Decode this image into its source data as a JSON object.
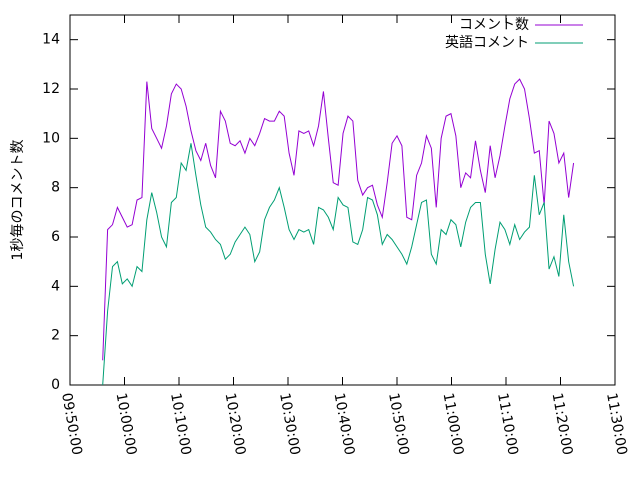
{
  "chart_data": {
    "type": "line",
    "y_label": "1秒毎のコメント数",
    "x": [
      "09:56:00",
      "09:56:54",
      "09:57:48",
      "09:58:42",
      "09:59:36",
      "10:00:30",
      "10:01:24",
      "10:02:18",
      "10:03:12",
      "10:04:06",
      "10:05:00",
      "10:05:54",
      "10:06:48",
      "10:07:42",
      "10:08:36",
      "10:09:30",
      "10:10:24",
      "10:11:18",
      "10:12:12",
      "10:13:06",
      "10:14:00",
      "10:14:54",
      "10:15:48",
      "10:16:42",
      "10:17:36",
      "10:18:30",
      "10:19:24",
      "10:20:18",
      "10:21:12",
      "10:22:06",
      "10:23:00",
      "10:23:54",
      "10:24:48",
      "10:25:42",
      "10:26:36",
      "10:27:30",
      "10:28:24",
      "10:29:18",
      "10:30:12",
      "10:31:06",
      "10:32:00",
      "10:32:54",
      "10:33:48",
      "10:34:42",
      "10:35:36",
      "10:36:30",
      "10:37:24",
      "10:38:18",
      "10:39:12",
      "10:40:06",
      "10:41:00",
      "10:41:54",
      "10:42:48",
      "10:43:42",
      "10:44:36",
      "10:45:30",
      "10:46:24",
      "10:47:18",
      "10:48:12",
      "10:49:06",
      "10:50:00",
      "10:50:54",
      "10:51:48",
      "10:52:42",
      "10:53:36",
      "10:54:30",
      "10:55:24",
      "10:56:18",
      "10:57:12",
      "10:58:06",
      "10:59:00",
      "10:59:54",
      "11:00:48",
      "11:01:42",
      "11:02:36",
      "11:03:30",
      "11:04:24",
      "11:05:18",
      "11:06:12",
      "11:07:06",
      "11:08:00",
      "11:08:54",
      "11:09:48",
      "11:10:42",
      "11:11:36",
      "11:12:30",
      "11:13:24",
      "11:14:18",
      "11:15:12",
      "11:16:06",
      "11:17:00",
      "11:17:54",
      "11:18:48",
      "11:19:42",
      "11:20:36",
      "11:21:30",
      "11:22:24"
    ],
    "series": [
      {
        "name": "コメント数",
        "color": "#9400d3",
        "values": [
          1.0,
          6.3,
          6.5,
          7.2,
          6.8,
          6.4,
          6.5,
          7.5,
          7.6,
          12.3,
          10.4,
          10.0,
          9.6,
          10.5,
          11.8,
          12.2,
          12.0,
          11.3,
          10.3,
          9.5,
          9.1,
          9.8,
          8.9,
          8.4,
          11.1,
          10.7,
          9.8,
          9.7,
          9.9,
          9.4,
          10.0,
          9.7,
          10.2,
          10.8,
          10.7,
          10.7,
          11.1,
          10.9,
          9.4,
          8.5,
          10.3,
          10.2,
          10.3,
          9.7,
          10.5,
          11.9,
          10.0,
          8.2,
          8.1,
          10.2,
          10.9,
          10.7,
          8.3,
          7.7,
          8.0,
          8.1,
          7.3,
          6.8,
          8.2,
          9.8,
          10.1,
          9.7,
          6.8,
          6.7,
          8.5,
          9.0,
          10.1,
          9.6,
          7.2,
          10.0,
          10.9,
          11.0,
          10.1,
          8.0,
          8.6,
          8.4,
          9.9,
          8.7,
          7.8,
          9.7,
          8.4,
          9.3,
          10.5,
          11.6,
          12.2,
          12.4,
          12.0,
          10.8,
          9.4,
          9.5,
          7.3,
          10.7,
          10.2,
          9.0,
          9.4,
          7.6,
          9.0
        ]
      },
      {
        "name": "英語コメント",
        "color": "#009e73",
        "values": [
          0,
          3.0,
          4.8,
          5.0,
          4.1,
          4.3,
          4.0,
          4.8,
          4.6,
          6.7,
          7.8,
          7.0,
          6.0,
          5.6,
          7.4,
          7.6,
          9.0,
          8.7,
          9.8,
          8.5,
          7.3,
          6.4,
          6.2,
          5.9,
          5.7,
          5.1,
          5.3,
          5.8,
          6.1,
          6.4,
          6.1,
          5.0,
          5.4,
          6.7,
          7.2,
          7.5,
          8.0,
          7.2,
          6.3,
          5.9,
          6.3,
          6.2,
          6.3,
          5.7,
          7.2,
          7.1,
          6.8,
          6.3,
          7.6,
          7.3,
          7.2,
          5.8,
          5.7,
          6.3,
          7.6,
          7.5,
          6.9,
          5.7,
          6.1,
          5.9,
          5.6,
          5.3,
          4.9,
          5.6,
          6.5,
          7.4,
          7.5,
          5.3,
          4.9,
          6.3,
          6.1,
          6.7,
          6.5,
          5.6,
          6.6,
          7.2,
          7.4,
          7.4,
          5.3,
          4.1,
          5.5,
          6.6,
          6.3,
          5.7,
          6.5,
          5.9,
          6.2,
          6.4,
          8.5,
          6.9,
          7.4,
          4.7,
          5.2,
          4.4,
          6.9,
          5.0,
          4.0
        ]
      }
    ],
    "xlim": [
      "09:50:00",
      "11:30:00"
    ],
    "xticks": [
      "09:50:00",
      "10:00:00",
      "10:10:00",
      "10:20:00",
      "10:30:00",
      "10:40:00",
      "10:50:00",
      "11:00:00",
      "11:10:00",
      "11:20:00",
      "11:30:00"
    ],
    "ylim": [
      0,
      15
    ],
    "yticks": [
      0,
      2,
      4,
      6,
      8,
      10,
      12,
      14
    ],
    "legend": "top-right",
    "grid": false
  }
}
